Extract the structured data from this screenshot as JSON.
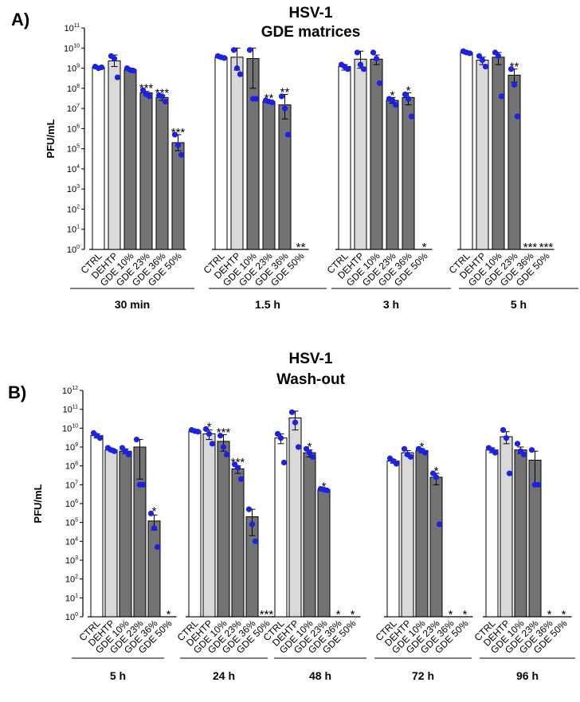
{
  "chart_data": [
    {
      "type": "bar",
      "panel": "A)",
      "title": [
        "HSV-1",
        "GDE matrices"
      ],
      "ylabel": "PFU/mL",
      "yscale": "log10",
      "ylim_exponents": [
        0,
        11
      ],
      "categories": [
        "CTRL",
        "DEHTP",
        "GDE 10%",
        "GDE 23%",
        "GDE 36%",
        "GDE 50%"
      ],
      "bar_colors": [
        "#ffffff",
        "#d9d9d9",
        "#737373",
        "#737373",
        "#737373",
        "#737373"
      ],
      "point_color": "#1a22e6",
      "groups": [
        {
          "label": "30 min",
          "bars": [
            {
              "value": 1100000000.0,
              "err": [
                1000000000.0,
                1200000000.0
              ],
              "points": [
                1200000000.0,
                1000000000.0,
                1100000000.0
              ],
              "sig": ""
            },
            {
              "value": 2300000000.0,
              "err": [
                1200000000.0,
                4500000000.0
              ],
              "points": [
                4000000000.0,
                3000000000.0,
                350000000.0
              ],
              "sig": ""
            },
            {
              "value": 850000000.0,
              "err": [
                750000000.0,
                1000000000.0
              ],
              "points": [
                1000000000.0,
                800000000.0,
                750000000.0
              ],
              "sig": ""
            },
            {
              "value": 60000000.0,
              "err": [
                50000000.0,
                70000000.0
              ],
              "points": [
                80000000.0,
                50000000.0,
                40000000.0
              ],
              "sig": "***"
            },
            {
              "value": 35000000.0,
              "err": [
                25000000.0,
                45000000.0
              ],
              "points": [
                45000000.0,
                40000000.0,
                22000000.0
              ],
              "sig": "***"
            },
            {
              "value": 200000.0,
              "err": [
                80000.0,
                500000.0
              ],
              "points": [
                500000.0,
                150000.0,
                50000.0
              ],
              "sig": "***"
            }
          ]
        },
        {
          "label": "1.5 h",
          "bars": [
            {
              "value": 3500000000.0,
              "err": [
                3000000000.0,
                4000000000.0
              ],
              "points": [
                4000000000.0,
                3500000000.0,
                3200000000.0
              ],
              "sig": ""
            },
            {
              "value": 3500000000.0,
              "err": [
                800000000.0,
                10000000000.0
              ],
              "points": [
                8000000000.0,
                1000000000.0,
                500000000.0
              ],
              "sig": ""
            },
            {
              "value": 3000000000.0,
              "err": [
                100000000.0,
                10000000000.0
              ],
              "points": [
                8000000000.0,
                30000000.0,
                30000000.0
              ],
              "sig": ""
            },
            {
              "value": 22000000.0,
              "err": [
                20000000.0,
                25000000.0
              ],
              "points": [
                25000000.0,
                22000000.0,
                20000000.0
              ],
              "sig": "**"
            },
            {
              "value": 15000000.0,
              "err": [
                3000000.0,
                50000000.0
              ],
              "points": [
                40000000.0,
                10000000.0,
                500000.0
              ],
              "sig": "**"
            },
            {
              "value": null,
              "err": null,
              "points": [],
              "sig": "**"
            }
          ]
        },
        {
          "label": "3 h",
          "bars": [
            {
              "value": 1200000000.0,
              "err": [
                800000000.0,
                1500000000.0
              ],
              "points": [
                1500000000.0,
                1200000000.0,
                900000000.0
              ],
              "sig": ""
            },
            {
              "value": 2800000000.0,
              "err": [
                1000000000.0,
                7000000000.0
              ],
              "points": [
                6000000000.0,
                1500000000.0,
                900000000.0
              ],
              "sig": ""
            },
            {
              "value": 2800000000.0,
              "err": [
                1500000000.0,
                4500000000.0
              ],
              "points": [
                6000000000.0,
                3000000000.0,
                180000000.0
              ],
              "sig": ""
            },
            {
              "value": 25000000.0,
              "err": [
                18000000.0,
                35000000.0
              ],
              "points": [
                30000000.0,
                25000000.0,
                15000000.0
              ],
              "sig": "*"
            },
            {
              "value": 35000000.0,
              "err": [
                15000000.0,
                60000000.0
              ],
              "points": [
                50000000.0,
                30000000.0,
                4000000.0
              ],
              "sig": "*"
            },
            {
              "value": null,
              "err": null,
              "points": [],
              "sig": "*"
            }
          ]
        },
        {
          "label": "5 h",
          "bars": [
            {
              "value": 6000000000.0,
              "err": [
                5000000000.0,
                7000000000.0
              ],
              "points": [
                7000000000.0,
                6000000000.0,
                5500000000.0
              ],
              "sig": ""
            },
            {
              "value": 2500000000.0,
              "err": [
                1500000000.0,
                3500000000.0
              ],
              "points": [
                4000000000.0,
                2500000000.0,
                1200000000.0
              ],
              "sig": ""
            },
            {
              "value": 3500000000.0,
              "err": [
                1500000000.0,
                6000000000.0
              ],
              "points": [
                6000000000.0,
                4000000000.0,
                40000000.0
              ],
              "sig": ""
            },
            {
              "value": 450000000.0,
              "err": [
                200000000.0,
                900000000.0
              ],
              "points": [
                900000000.0,
                150000000.0,
                4000000.0
              ],
              "sig": "**"
            },
            {
              "value": null,
              "err": null,
              "points": [],
              "sig": "***"
            },
            {
              "value": null,
              "err": null,
              "points": [],
              "sig": "***"
            }
          ]
        }
      ]
    },
    {
      "type": "bar",
      "panel": "B)",
      "title": [
        "HSV-1",
        "Wash-out"
      ],
      "ylabel": "PFU/mL",
      "yscale": "log10",
      "ylim_exponents": [
        0,
        12
      ],
      "categories": [
        "CTRL",
        "DEHTP",
        "GDE 10%",
        "GDE 23%",
        "GDE 36%",
        "GDE 50%"
      ],
      "bar_colors": [
        "#ffffff",
        "#d9d9d9",
        "#737373",
        "#737373",
        "#737373",
        "#737373"
      ],
      "point_color": "#1a22e6",
      "groups": [
        {
          "label": "5 h",
          "bars": [
            {
              "value": 4000000000.0,
              "err": [
                3000000000.0,
                5000000000.0
              ],
              "points": [
                5500000000.0,
                4000000000.0,
                3000000000.0
              ],
              "sig": ""
            },
            {
              "value": 700000000.0,
              "err": [
                600000000.0,
                850000000.0
              ],
              "points": [
                900000000.0,
                700000000.0,
                600000000.0
              ],
              "sig": ""
            },
            {
              "value": 600000000.0,
              "err": [
                450000000.0,
                800000000.0
              ],
              "points": [
                900000000.0,
                600000000.0,
                400000000.0
              ],
              "sig": ""
            },
            {
              "value": 1000000000.0,
              "err": [
                20000000.0,
                2500000000.0
              ],
              "points": [
                2500000000.0,
                10000000.0,
                10000000.0
              ],
              "sig": ""
            },
            {
              "value": 120000.0,
              "err": [
                40000.0,
                250000.0
              ],
              "points": [
                300000.0,
                50000.0,
                5000.0
              ],
              "sig": "*"
            },
            {
              "value": null,
              "err": null,
              "points": [],
              "sig": "*"
            }
          ]
        },
        {
          "label": "24 h",
          "bars": [
            {
              "value": 7000000000.0,
              "err": [
                6000000000.0,
                8000000000.0
              ],
              "points": [
                8000000000.0,
                7000000000.0,
                6500000000.0
              ],
              "sig": ""
            },
            {
              "value": 5000000000.0,
              "err": [
                2500000000.0,
                8000000000.0
              ],
              "points": [
                9000000000.0,
                5000000000.0,
                1500000000.0
              ],
              "sig": "*"
            },
            {
              "value": 2000000000.0,
              "err": [
                600000000.0,
                4500000000.0
              ],
              "points": [
                4000000000.0,
                1000000000.0,
                400000000.0
              ],
              "sig": "***"
            },
            {
              "value": 70000000.0,
              "err": [
                40000000.0,
                100000000.0
              ],
              "points": [
                120000000.0,
                80000000.0,
                20000000.0
              ],
              "sig": "***"
            },
            {
              "value": 200000.0,
              "err": [
                20000.0,
                500000.0
              ],
              "points": [
                500000.0,
                80000.0,
                10000.0
              ],
              "sig": ""
            },
            {
              "value": null,
              "err": null,
              "points": [],
              "sig": "***"
            }
          ]
        },
        {
          "label": "48 h",
          "bars": [
            {
              "value": 3000000000.0,
              "err": [
                1500000000.0,
                5000000000.0
              ],
              "points": [
                5000000000.0,
                3000000000.0,
                150000000.0
              ],
              "sig": ""
            },
            {
              "value": 35000000000.0,
              "err": [
                8000000000.0,
                80000000000.0
              ],
              "points": [
                70000000000.0,
                20000000000.0,
                1000000000.0
              ],
              "sig": ""
            },
            {
              "value": 500000000.0,
              "err": [
                300000000.0,
                700000000.0
              ],
              "points": [
                800000000.0,
                500000000.0,
                300000000.0
              ],
              "sig": "*"
            },
            {
              "value": 5500000.0,
              "err": [
                5000000.0,
                6000000.0
              ],
              "points": [
                6000000.0,
                5500000.0,
                5000000.0
              ],
              "sig": "*"
            },
            {
              "value": null,
              "err": null,
              "points": [],
              "sig": "*"
            },
            {
              "value": null,
              "err": null,
              "points": [],
              "sig": "*"
            }
          ]
        },
        {
          "label": "72 h",
          "bars": [
            {
              "value": 180000000.0,
              "err": [
                140000000.0,
                220000000.0
              ],
              "points": [
                250000000.0,
                180000000.0,
                130000000.0
              ],
              "sig": ""
            },
            {
              "value": 500000000.0,
              "err": [
                350000000.0,
                650000000.0
              ],
              "points": [
                800000000.0,
                400000000.0,
                300000000.0
              ],
              "sig": ""
            },
            {
              "value": 650000000.0,
              "err": [
                500000000.0,
                800000000.0
              ],
              "points": [
                800000000.0,
                650000000.0,
                500000000.0
              ],
              "sig": "*"
            },
            {
              "value": 25000000.0,
              "err": [
                10000000.0,
                40000000.0
              ],
              "points": [
                40000000.0,
                25000000.0,
                80000.0
              ],
              "sig": "*"
            },
            {
              "value": null,
              "err": null,
              "points": [],
              "sig": "*"
            },
            {
              "value": null,
              "err": null,
              "points": [],
              "sig": "*"
            }
          ]
        },
        {
          "label": "96 h",
          "bars": [
            {
              "value": 700000000.0,
              "err": [
                500000000.0,
                900000000.0
              ],
              "points": [
                900000000.0,
                700000000.0,
                500000000.0
              ],
              "sig": ""
            },
            {
              "value": 3500000000.0,
              "err": [
                1500000000.0,
                6500000000.0
              ],
              "points": [
                8000000000.0,
                3000000000.0,
                40000000.0
              ],
              "sig": ""
            },
            {
              "value": 700000000.0,
              "err": [
                450000000.0,
                1000000000.0
              ],
              "points": [
                1500000000.0,
                600000000.0,
                400000000.0
              ],
              "sig": ""
            },
            {
              "value": 200000000.0,
              "err": [
                10000000.0,
                600000000.0
              ],
              "points": [
                700000000.0,
                10000000.0,
                10000000.0
              ],
              "sig": ""
            },
            {
              "value": null,
              "err": null,
              "points": [],
              "sig": "*"
            },
            {
              "value": null,
              "err": null,
              "points": [],
              "sig": "*"
            }
          ]
        }
      ]
    }
  ]
}
